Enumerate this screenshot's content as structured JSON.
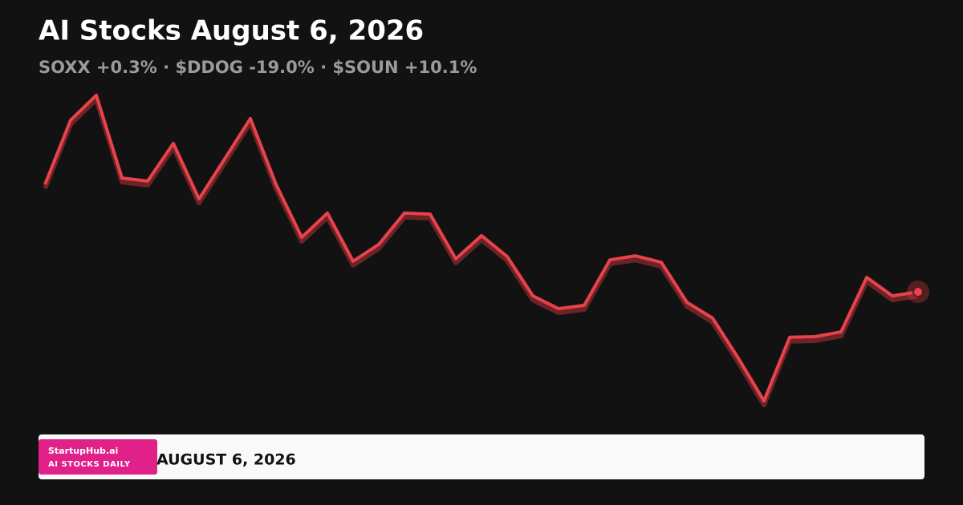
{
  "chart_data": {
    "type": "line",
    "title": "AI Stocks August 6, 2026",
    "subtitle": "SOXX +0.3% · $DDOG -19.0% · $SOUN +10.1%",
    "categories": [
      null,
      null,
      null,
      null,
      null,
      null,
      null,
      null,
      null,
      null,
      null,
      null,
      null,
      null,
      null,
      null,
      null,
      null,
      null,
      null,
      null,
      null,
      null,
      null,
      null,
      null,
      null,
      null,
      null,
      null,
      null,
      null,
      null,
      null,
      null
    ],
    "values": [
      71.4,
      90.5,
      97.9,
      73.3,
      72.4,
      83.6,
      67.1,
      79.0,
      91.0,
      71.4,
      55.7,
      62.9,
      48.6,
      53.6,
      62.9,
      62.6,
      49.3,
      56.2,
      50.0,
      38.3,
      34.5,
      35.5,
      49.0,
      50.2,
      48.3,
      36.4,
      31.7,
      19.8,
      7.1,
      26.0,
      26.2,
      27.6,
      43.8,
      38.3,
      39.5
    ],
    "color": "#e8424a",
    "ylim": [
      0,
      100
    ]
  },
  "footer": {
    "brand": "StartupHub.ai",
    "tagline": "AI STOCKS DAILY",
    "date": "AUGUST 6, 2026"
  }
}
